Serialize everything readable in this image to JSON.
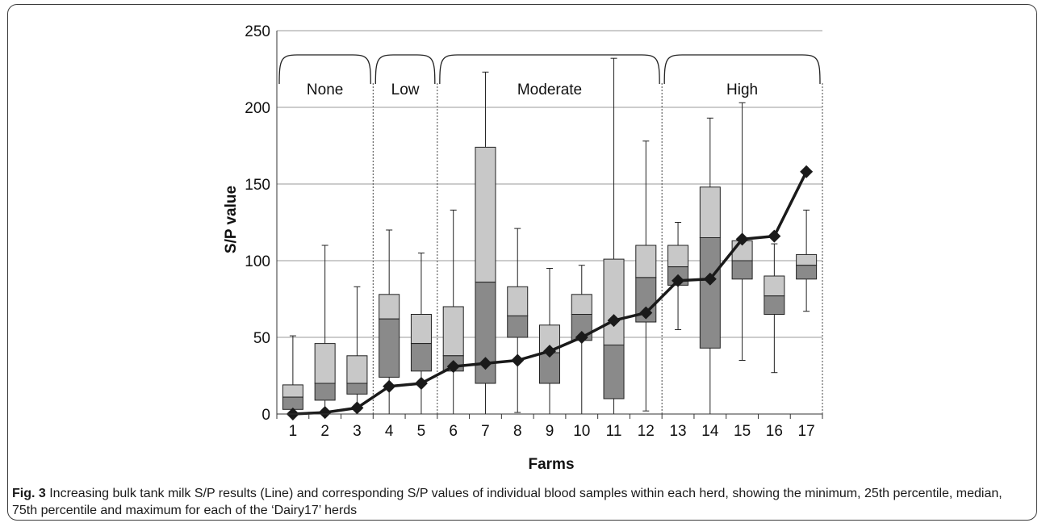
{
  "chart_data": {
    "type": "box",
    "categories": [
      "1",
      "2",
      "3",
      "4",
      "5",
      "6",
      "7",
      "8",
      "9",
      "10",
      "11",
      "12",
      "13",
      "14",
      "15",
      "16",
      "17"
    ],
    "xlabel": "Farms",
    "ylabel": "S/P value",
    "ylim": [
      0,
      250
    ],
    "yticks": [
      0,
      50,
      100,
      150,
      200,
      250
    ],
    "grid": true,
    "boxes": [
      {
        "farm": "1",
        "min": 0,
        "q1": 3,
        "median": 11,
        "q3": 19,
        "max": 51
      },
      {
        "farm": "2",
        "min": 0,
        "q1": 9,
        "median": 20,
        "q3": 46,
        "max": 110
      },
      {
        "farm": "3",
        "min": 0,
        "q1": 13,
        "median": 20,
        "q3": 38,
        "max": 83
      },
      {
        "farm": "4",
        "min": 0,
        "q1": 24,
        "median": 62,
        "q3": 78,
        "max": 120
      },
      {
        "farm": "5",
        "min": 0,
        "q1": 28,
        "median": 46,
        "q3": 65,
        "max": 105
      },
      {
        "farm": "6",
        "min": 0,
        "q1": 28,
        "median": 38,
        "q3": 70,
        "max": 133
      },
      {
        "farm": "7",
        "min": 0,
        "q1": 20,
        "median": 86,
        "q3": 174,
        "max": 223
      },
      {
        "farm": "8",
        "min": 1,
        "q1": 50,
        "median": 64,
        "q3": 83,
        "max": 121
      },
      {
        "farm": "9",
        "min": 0,
        "q1": 20,
        "median": 40,
        "q3": 58,
        "max": 95
      },
      {
        "farm": "10",
        "min": 0,
        "q1": 48,
        "median": 65,
        "q3": 78,
        "max": 97
      },
      {
        "farm": "11",
        "min": 0,
        "q1": 10,
        "median": 45,
        "q3": 101,
        "max": 232
      },
      {
        "farm": "12",
        "min": 2,
        "q1": 60,
        "median": 89,
        "q3": 110,
        "max": 178
      },
      {
        "farm": "13",
        "min": 55,
        "q1": 84,
        "median": 96,
        "q3": 110,
        "max": 125
      },
      {
        "farm": "14",
        "min": 0,
        "q1": 43,
        "median": 115,
        "q3": 148,
        "max": 193
      },
      {
        "farm": "15",
        "min": 35,
        "q1": 88,
        "median": 100,
        "q3": 113,
        "max": 203
      },
      {
        "farm": "16",
        "min": 27,
        "q1": 65,
        "median": 77,
        "q3": 90,
        "max": 111
      },
      {
        "farm": "17",
        "min": 67,
        "q1": 88,
        "median": 97,
        "q3": 104,
        "max": 133
      }
    ],
    "line": {
      "name": "Line",
      "values": [
        0,
        1,
        4,
        18,
        20,
        31,
        33,
        35,
        41,
        50,
        61,
        66,
        87,
        88,
        114,
        116,
        158
      ]
    },
    "groups": [
      {
        "label": "None",
        "from": 1,
        "to": 3
      },
      {
        "label": "Low",
        "from": 4,
        "to": 5
      },
      {
        "label": "Moderate",
        "from": 6,
        "to": 12
      },
      {
        "label": "High",
        "from": 13,
        "to": 17
      }
    ],
    "colors": {
      "box_upper": "#c8c8c8",
      "box_lower": "#8a8a8a",
      "line": "#1a1a1a",
      "grid": "#9a9a9a"
    }
  },
  "caption": {
    "label": "Fig. 3",
    "text": " Increasing bulk tank milk S/P results (Line) and corresponding S/P values of individual blood samples within each herd, showing the minimum, 25th percentile, median, 75th percentile and maximum for each of the ‘Dairy17’ herds"
  }
}
